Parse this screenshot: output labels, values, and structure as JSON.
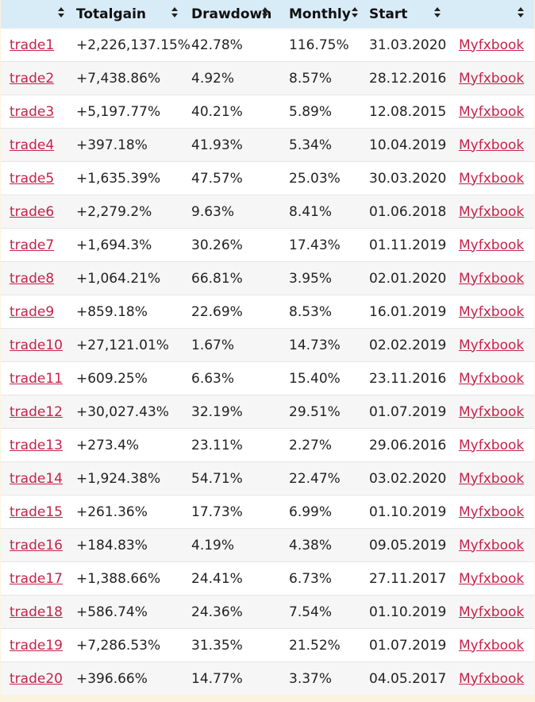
{
  "table": {
    "headers": [
      "",
      "Totalgain",
      "Drawdown",
      "Monthly",
      "Start",
      ""
    ],
    "rows": [
      {
        "name": "trade1",
        "gain": "+2,226,137.15%",
        "drawdown": "42.78%",
        "monthly": "116.75%",
        "start": "31.03.2020",
        "link": "Myfxbook"
      },
      {
        "name": "trade2",
        "gain": "+7,438.86%",
        "drawdown": "4.92%",
        "monthly": "8.57%",
        "start": "28.12.2016",
        "link": "Myfxbook"
      },
      {
        "name": "trade3",
        "gain": "+5,197.77%",
        "drawdown": "40.21%",
        "monthly": "5.89%",
        "start": "12.08.2015",
        "link": "Myfxbook"
      },
      {
        "name": "trade4",
        "gain": "+397.18%",
        "drawdown": "41.93%",
        "monthly": "5.34%",
        "start": "10.04.2019",
        "link": "Myfxbook"
      },
      {
        "name": "trade5",
        "gain": "+1,635.39%",
        "drawdown": "47.57%",
        "monthly": "25.03%",
        "start": "30.03.2020",
        "link": "Myfxbook"
      },
      {
        "name": "trade6",
        "gain": "+2,279.2%",
        "drawdown": "9.63%",
        "monthly": "8.41%",
        "start": "01.06.2018",
        "link": "Myfxbook"
      },
      {
        "name": "trade7",
        "gain": "+1,694.3%",
        "drawdown": "30.26%",
        "monthly": "17.43%",
        "start": "01.11.2019",
        "link": "Myfxbook"
      },
      {
        "name": "trade8",
        "gain": "+1,064.21%",
        "drawdown": "66.81%",
        "monthly": "3.95%",
        "start": "02.01.2020",
        "link": "Myfxbook"
      },
      {
        "name": "trade9",
        "gain": "+859.18%",
        "drawdown": "22.69%",
        "monthly": "8.53%",
        "start": "16.01.2019",
        "link": "Myfxbook"
      },
      {
        "name": "trade10",
        "gain": "+27,121.01%",
        "drawdown": "1.67%",
        "monthly": "14.73%",
        "start": "02.02.2019",
        "link": "Myfxbook"
      },
      {
        "name": "trade11",
        "gain": "+609.25%",
        "drawdown": "6.63%",
        "monthly": "15.40%",
        "start": "23.11.2016",
        "link": "Myfxbook"
      },
      {
        "name": "trade12",
        "gain": "+30,027.43%",
        "drawdown": "32.19%",
        "monthly": "29.51%",
        "start": "01.07.2019",
        "link": "Myfxbook"
      },
      {
        "name": "trade13",
        "gain": "+273.4%",
        "drawdown": "23.11%",
        "monthly": "2.27%",
        "start": "29.06.2016",
        "link": "Myfxbook"
      },
      {
        "name": "trade14",
        "gain": "+1,924.38%",
        "drawdown": "54.71%",
        "monthly": "22.47%",
        "start": "03.02.2020",
        "link": "Myfxbook"
      },
      {
        "name": "trade15",
        "gain": "+261.36%",
        "drawdown": "17.73%",
        "monthly": "6.99%",
        "start": "01.10.2019",
        "link": "Myfxbook"
      },
      {
        "name": "trade16",
        "gain": "+184.83%",
        "drawdown": "4.19%",
        "monthly": "4.38%",
        "start": "09.05.2019",
        "link": "Myfxbook"
      },
      {
        "name": "trade17",
        "gain": "+1,388.66%",
        "drawdown": "24.41%",
        "monthly": "6.73%",
        "start": "27.11.2017",
        "link": "Myfxbook"
      },
      {
        "name": "trade18",
        "gain": "+586.74%",
        "drawdown": "24.36%",
        "monthly": "7.54%",
        "start": "01.10.2019",
        "link": "Myfxbook"
      },
      {
        "name": "trade19",
        "gain": "+7,286.53%",
        "drawdown": "31.35%",
        "monthly": "21.52%",
        "start": "01.07.2019",
        "link": "Myfxbook"
      },
      {
        "name": "trade20",
        "gain": "+396.66%",
        "drawdown": "14.77%",
        "monthly": "3.37%",
        "start": "04.05.2017",
        "link": "Myfxbook"
      }
    ]
  },
  "colors": {
    "header_bg": "#d8ecf8",
    "link": "#c4234b",
    "page_bg": "#fbf3df"
  },
  "icons": {
    "sort": "sort-arrows-icon"
  }
}
